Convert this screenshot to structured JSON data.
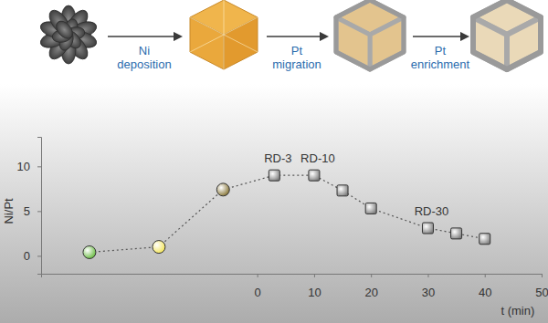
{
  "chart_data": {
    "type": "line",
    "x_label": "t (min)",
    "y_label": "Ni/Pt",
    "xlim": [
      -38,
      50
    ],
    "xticks": [
      0,
      10,
      20,
      30,
      40,
      50
    ],
    "ylim": [
      -2,
      13.3
    ],
    "yticks": [
      0,
      5,
      10
    ],
    "grid": false,
    "series": [
      {
        "x": [
          -29.5,
          -17.3,
          -6.0
        ],
        "values": [
          0.4,
          1.0,
          7.4
        ],
        "marker": "circle",
        "line_style": "dotted",
        "colors": [
          "#5cb531",
          "#f2e24a",
          "#7d6a26"
        ]
      },
      {
        "x": [
          3,
          10,
          15,
          20,
          30,
          35,
          40
        ],
        "values": [
          9.0,
          9.0,
          7.3,
          5.3,
          3.1,
          2.5,
          1.9
        ],
        "marker": "square",
        "line_style": "dotted",
        "color": "#7a7a7a"
      }
    ],
    "annotations": [
      {
        "text": "RD-3",
        "x": 3,
        "y": 9.0
      },
      {
        "text": "RD-10",
        "x": 10,
        "y": 9.0
      },
      {
        "text": "RD-30",
        "x": 30,
        "y": 3.1
      }
    ]
  },
  "schematic": {
    "labels": [
      [
        "Ni",
        "deposition"
      ],
      [
        "Pt",
        "migration"
      ],
      [
        "Pt",
        "enrichment"
      ]
    ]
  }
}
